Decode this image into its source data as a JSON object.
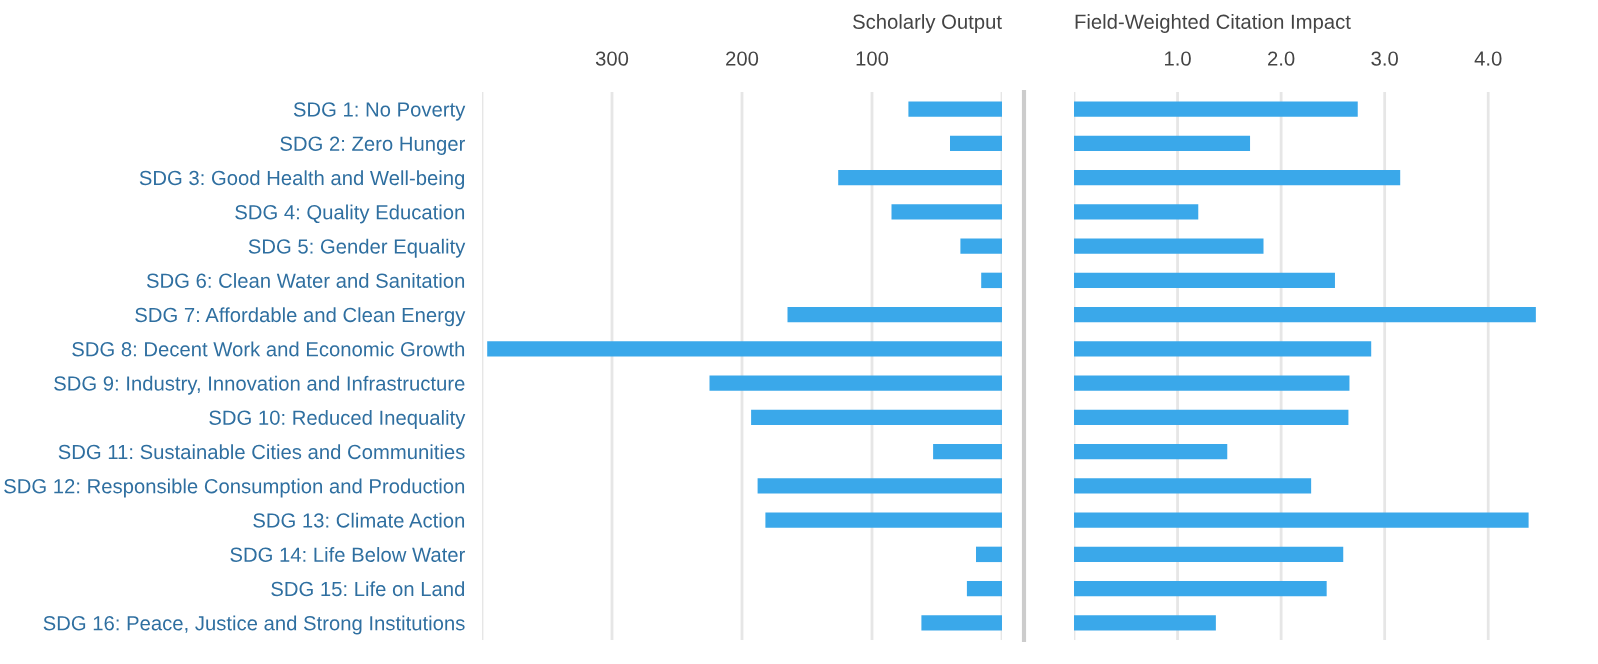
{
  "chart_data": [
    {
      "type": "bar",
      "orientation": "horizontal",
      "xlabel": "Scholarly Output",
      "categories": [
        "SDG 1: No Poverty",
        "SDG 2: Zero Hunger",
        "SDG 3: Good Health and Well-being",
        "SDG 4: Quality Education",
        "SDG 5: Gender Equality",
        "SDG 6: Clean Water and Sanitation",
        "SDG 7: Affordable and Clean Energy",
        "SDG 8: Decent Work and Economic Growth",
        "SDG 9: Industry, Innovation and Infrastructure",
        "SDG 10: Reduced Inequality",
        "SDG 11: Sustainable Cities and Communities",
        "SDG 12: Responsible Consumption and Production",
        "SDG 13: Climate Action",
        "SDG 14: Life Below Water",
        "SDG 15: Life on Land",
        "SDG 16: Peace, Justice and Strong Institutions"
      ],
      "values": [
        72,
        40,
        126,
        85,
        32,
        16,
        165,
        396,
        225,
        193,
        53,
        188,
        182,
        20,
        27,
        62
      ],
      "color": "#3aa8ea",
      "xlim": [
        400,
        0
      ],
      "xticks": [
        {
          "value": 400,
          "label": null
        },
        300,
        200,
        100,
        {
          "value": 0,
          "label": null
        }
      ],
      "grid": "x"
    },
    {
      "type": "bar",
      "orientation": "horizontal",
      "xlabel": "Field-Weighted Citation Impact",
      "categories": [
        null,
        null,
        null,
        null,
        null,
        null,
        null,
        null,
        null,
        null,
        null,
        null,
        null,
        null,
        null,
        null
      ],
      "values": [
        2.74,
        1.7,
        3.15,
        1.2,
        1.83,
        2.52,
        4.46,
        2.87,
        2.66,
        2.65,
        1.48,
        2.29,
        4.39,
        2.6,
        2.44,
        1.37
      ],
      "color": "#3aa8ea",
      "xlim": [
        0,
        4.5
      ],
      "xticks": [
        {
          "value": 0,
          "label": null
        },
        {
          "value": 1,
          "label": "1.0"
        },
        {
          "value": 2,
          "label": "2.0"
        },
        {
          "value": 3,
          "label": "3.0"
        },
        {
          "value": 4,
          "label": "4.0"
        }
      ],
      "grid": "x"
    }
  ]
}
